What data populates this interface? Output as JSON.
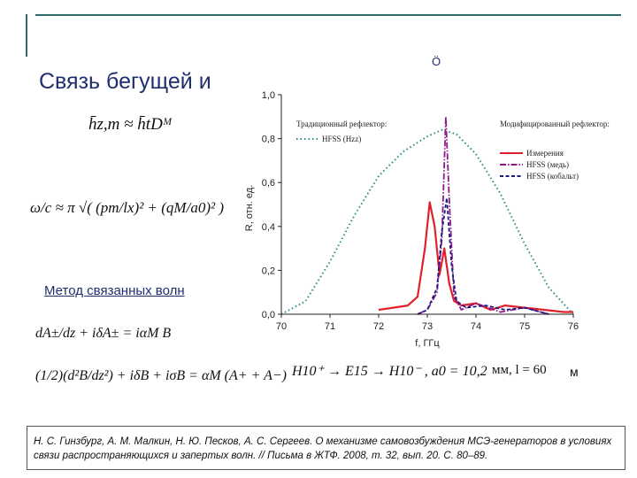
{
  "slide": {
    "title": "Связь бегущей и",
    "title_tail": "Ö",
    "method_text": "Метод связанных волн",
    "formula1": "h̄z,m ≈ h̄tDᴹ",
    "formula2": "ω/c ≈ π √( (pm/lx)² + (qM/a0)² )",
    "eq1": "dA±/dz + iδA± = iαM B",
    "eq2": "(1/2)(d²B/dz²) + iδB + iσB = αM (A+ + A−)",
    "wave_text": "H10⁺ → E15 → H10⁻ , a0 = 10,2",
    "wave_mm": "мм, l = 60",
    "wave_tail": "м",
    "reference": "Н. С. Гинзбург, А. М. Малкин, Н. Ю. Песков, А. С. Сергеев. О механизме самовозбуждения МСЭ-генераторов в условиях связи распространяющихся и запертых волн. // Письма в ЖТФ. 2008, т. 32, вып. 20. С. 80–89."
  },
  "chart_data": {
    "type": "line",
    "xlabel": "f, ГГц",
    "ylabel": "R, отн. ед.",
    "xlim": [
      70,
      76
    ],
    "ylim": [
      0,
      1.0
    ],
    "x_ticks": [
      "70",
      "71",
      "72",
      "73",
      "74",
      "75",
      "76"
    ],
    "y_ticks": [
      "0,0",
      "0,2",
      "0,4",
      "0,6",
      "0,8",
      "1,0"
    ],
    "legend_left_title": "Традиционный рефлектор:",
    "legend_right_title": "Модифицированный рефлектор:",
    "series": [
      {
        "name": "HFSS (Hzz)",
        "color": "#2a8c8c",
        "style": "dotted",
        "x": [
          70.0,
          70.5,
          71.0,
          71.5,
          72.0,
          72.5,
          73.0,
          73.3,
          73.6,
          74.0,
          74.5,
          75.0,
          75.5,
          76.0
        ],
        "y": [
          0.0,
          0.06,
          0.24,
          0.45,
          0.63,
          0.74,
          0.81,
          0.84,
          0.82,
          0.73,
          0.55,
          0.32,
          0.12,
          0.0
        ]
      },
      {
        "name": "Измерения",
        "color": "#e0202a",
        "style": "solid",
        "x": [
          72.0,
          72.3,
          72.6,
          72.8,
          72.95,
          73.05,
          73.15,
          73.25,
          73.35,
          73.45,
          73.55,
          73.7,
          74.0,
          74.3,
          74.6,
          75.0,
          75.4,
          75.8,
          76.0
        ],
        "y": [
          0.02,
          0.03,
          0.04,
          0.08,
          0.3,
          0.51,
          0.4,
          0.18,
          0.3,
          0.14,
          0.06,
          0.04,
          0.05,
          0.02,
          0.04,
          0.03,
          0.02,
          0.01,
          0.01
        ]
      },
      {
        "name": "HFSS (медь)",
        "color": "#8a1a8a",
        "style": "dashdot",
        "x": [
          72.8,
          73.0,
          73.2,
          73.3,
          73.38,
          73.45,
          73.55,
          73.7,
          74.0,
          74.5,
          75.0,
          75.5
        ],
        "y": [
          0.0,
          0.02,
          0.1,
          0.35,
          0.9,
          0.52,
          0.08,
          0.02,
          0.05,
          0.01,
          0.03,
          0.0
        ]
      },
      {
        "name": "HFSS (кобальт)",
        "color": "#1a1a80",
        "style": "dashed",
        "x": [
          72.8,
          73.0,
          73.2,
          73.3,
          73.4,
          73.5,
          73.6,
          73.8,
          74.2,
          74.6,
          75.0,
          75.5
        ],
        "y": [
          0.0,
          0.02,
          0.12,
          0.38,
          0.53,
          0.22,
          0.06,
          0.03,
          0.04,
          0.02,
          0.03,
          0.0
        ]
      }
    ]
  }
}
